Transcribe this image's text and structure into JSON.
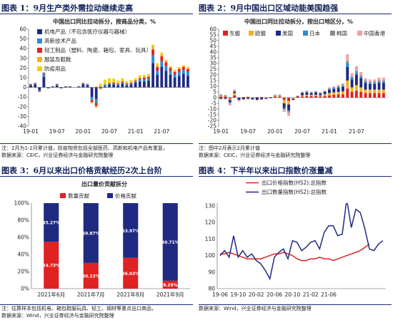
{
  "panels": [
    {
      "title": "图表 1：9月生产类外需拉动继续走高",
      "notes": [
        "注：2月为1-2月累计值，防疫物资包括全部医药、高新和机电产品有重复，",
        "数据来源：CEIC，兴业证券经济与金融研究院整理"
      ]
    },
    {
      "title": "图表 2：9月中国出口区域动能美国趋强",
      "notes": [
        "注：图中2月表示2月累计值",
        "数据来源：CEIC，兴业证券经济与金融研究院整理"
      ]
    },
    {
      "title": "图表 3：6月以来出口价格贡献经历2次上台阶",
      "notes": [
        "注：估算样本包括机电、箱包鞋服玩具、轻工、钢材等重点出口商品，",
        "数据来源：Wind，兴业证券经济与金融研究院整理"
      ]
    },
    {
      "title": "图表 4：下半年以来出口指数价涨量减",
      "notes": [
        "数据来源：Wind，兴业证券经济与金融研究院整理"
      ]
    }
  ],
  "chart_data": [
    {
      "type": "bar",
      "stacked": true,
      "title": "中国出口同比拉动拆分，按商品分类，%",
      "x_tick_labels": [
        "19-01",
        "19-07",
        "20-01",
        "20-07",
        "21-01",
        "21-07"
      ],
      "ylim": [
        -40,
        60
      ],
      "yticks": [
        -40,
        -30,
        -20,
        -10,
        0,
        10,
        20,
        30,
        40,
        50,
        60
      ],
      "legend_position": "top-left",
      "colors": [
        "#1f2a80",
        "#2a8ad8",
        "#e02222",
        "#f0b020",
        "#f5d000"
      ],
      "series": [
        {
          "name": "机电产品（不包含医疗仪器与器械）",
          "values": [
            2,
            3,
            -3,
            11,
            -1,
            1,
            2,
            -1,
            1,
            1,
            0,
            1,
            3,
            2,
            -10,
            -12,
            0,
            1,
            3,
            3,
            2,
            4,
            2,
            3,
            5,
            6,
            6,
            7,
            25,
            13,
            21,
            17,
            13,
            10,
            12,
            14,
            12
          ]
        },
        {
          "name": "高新技术产品",
          "values": [
            1,
            1,
            -1,
            3,
            0,
            0,
            1,
            0,
            0,
            0,
            0,
            0,
            1,
            1,
            -3,
            -4,
            1,
            2,
            1,
            1,
            1,
            1,
            1,
            1,
            1,
            2,
            2,
            2,
            8,
            4,
            6,
            5,
            4,
            3,
            4,
            4,
            4
          ]
        },
        {
          "name": "轻工制品（塑料、陶瓷、箱包、家具、玩具）",
          "values": [
            0.5,
            0.5,
            -0.5,
            1,
            0,
            0,
            0.5,
            0,
            0,
            0,
            0,
            0,
            0.5,
            0.5,
            -2,
            -3,
            -1,
            0,
            0.5,
            1,
            1,
            1,
            1,
            1,
            1,
            1.5,
            2,
            2,
            6,
            4,
            5,
            4,
            3,
            3,
            3,
            3,
            3
          ]
        },
        {
          "name": "服装及鞋靴",
          "values": [
            0.3,
            0.3,
            -0.3,
            0.5,
            0,
            0,
            0.3,
            0,
            0,
            0,
            0,
            0,
            0.3,
            0.3,
            -1.5,
            -2,
            -1,
            -0.5,
            0,
            0,
            0,
            0.5,
            0.5,
            0.5,
            0.5,
            1,
            1,
            1,
            3,
            2,
            2,
            1.5,
            1,
            1,
            1,
            1,
            1
          ]
        },
        {
          "name": "防疫用品",
          "values": [
            0,
            0,
            0,
            0,
            0,
            0,
            0,
            0,
            0,
            0,
            0,
            0,
            0,
            0,
            0,
            1,
            3,
            5,
            5,
            4,
            3,
            3,
            2,
            2,
            2,
            2,
            2,
            2,
            2,
            2,
            2,
            1,
            1,
            1,
            1,
            1,
            1
          ]
        }
      ]
    },
    {
      "type": "bar",
      "stacked": true,
      "title": "中国出口同比拉动拆分，按出口地区分，%",
      "x_tick_labels": [
        "19-01",
        "19-07",
        "20-01",
        "20-07",
        "21-01",
        "21-07"
      ],
      "ylim": [
        -25,
        60
      ],
      "yticks": [
        -25,
        -20,
        -15,
        -10,
        -5,
        0,
        5,
        10,
        15,
        20,
        25,
        30,
        35,
        40,
        45,
        50,
        55,
        60
      ],
      "legend_position": "top",
      "colors": [
        "#e02222",
        "#f5b020",
        "#1f2a80",
        "#2a8ad8",
        "#8a8a8a",
        "#f0a0a0"
      ],
      "series": [
        {
          "name": "东盟",
          "values": [
            1,
            1,
            -1,
            2,
            0,
            0.5,
            0.5,
            0,
            0.5,
            0.5,
            0,
            0.5,
            1,
            1,
            -2,
            -3,
            0,
            1,
            1,
            1.5,
            1.5,
            1.5,
            1,
            1.5,
            2,
            2.5,
            3,
            3,
            8,
            5,
            6,
            5,
            4,
            4,
            4,
            4,
            4
          ]
        },
        {
          "name": "欧盟",
          "values": [
            1,
            0.5,
            -1,
            2,
            0,
            0,
            0.5,
            0,
            0,
            0,
            0,
            0,
            0.5,
            0.5,
            -3,
            -3,
            -1,
            0,
            1,
            1,
            1,
            1,
            1,
            1.5,
            2,
            2,
            2,
            2.5,
            7,
            4,
            5,
            4,
            3,
            3,
            3,
            3,
            3
          ]
        },
        {
          "name": "美国",
          "values": [
            -1,
            -1,
            -2,
            1,
            -2,
            -1.5,
            -1,
            -1.5,
            -2,
            -1.5,
            -1,
            -0.5,
            0,
            0,
            -4,
            -5,
            -1,
            0.5,
            2,
            2,
            1.5,
            2,
            1.5,
            2,
            3,
            3,
            3.5,
            4,
            12,
            7,
            9,
            8,
            6,
            5,
            5,
            6,
            6
          ]
        },
        {
          "name": "日本",
          "values": [
            0.5,
            0.5,
            -0.5,
            0.5,
            0,
            0,
            0,
            0,
            0,
            0,
            0,
            0,
            0.5,
            0.5,
            -1,
            -1,
            0,
            0,
            0.5,
            0.5,
            0.5,
            0.5,
            0.5,
            0.5,
            0.5,
            1,
            1,
            1,
            3,
            1.5,
            2,
            1.5,
            1,
            1,
            1,
            1,
            1
          ]
        },
        {
          "name": "韩国",
          "values": [
            0.3,
            0.3,
            -0.3,
            0.5,
            0,
            0,
            0,
            0,
            0,
            0,
            0,
            0,
            0.3,
            0.3,
            -0.5,
            -1,
            0,
            0,
            0.3,
            0.3,
            0.3,
            0.3,
            0.3,
            0.3,
            0.5,
            0.5,
            0.5,
            0.5,
            2,
            1,
            1.5,
            1,
            1,
            1,
            1,
            1,
            1
          ]
        },
        {
          "name": "中国香港",
          "values": [
            -0.5,
            -0.5,
            -2,
            1,
            -1,
            -0.5,
            -0.5,
            -0.5,
            -0.5,
            -0.5,
            -0.5,
            0,
            0.5,
            0.5,
            -2,
            -3,
            -0.5,
            0,
            0.5,
            1,
            0.5,
            0.5,
            0.5,
            0.5,
            1,
            1,
            1,
            1.5,
            6,
            3,
            4,
            3,
            2,
            2,
            2,
            2.5,
            2.5
          ]
        }
      ]
    },
    {
      "type": "bar",
      "stacked": true,
      "title": "出口量价贡献拆分",
      "categories": [
        "2021年6月",
        "2021年7月",
        "2021年8月",
        "2021年9月"
      ],
      "ylim": [
        0,
        100
      ],
      "yticks": [
        "0%",
        "20%",
        "40%",
        "60%",
        "80%",
        "100%"
      ],
      "legend_position": "top",
      "colors": [
        "#e02222",
        "#1f2a80"
      ],
      "series": [
        {
          "name": "数量贡献",
          "values": [
            54.73,
            30.13,
            36.03,
            9.29
          ],
          "labels": [
            "54.73%",
            "30.13%",
            "36.03%",
            "9.29%"
          ]
        },
        {
          "name": "价格贡献",
          "values": [
            45.27,
            69.87,
            63.97,
            90.71
          ],
          "labels": [
            "45.27%",
            "69.87%",
            "63.97%",
            "90.71%"
          ]
        }
      ]
    },
    {
      "type": "line",
      "x_tick_labels": [
        "19-06",
        "19-10",
        "20-02",
        "20-06",
        "20-10",
        "21-02",
        "21-06"
      ],
      "ylim": [
        80,
        130
      ],
      "yticks": [
        80,
        90,
        100,
        110,
        120,
        130
      ],
      "legend_position": "top",
      "grid": false,
      "colors": [
        "#e02222",
        "#1f2a80"
      ],
      "series": [
        {
          "name": "出口价格指数(HS2):总指数",
          "values": [
            101,
            101,
            102,
            101,
            100,
            99,
            98,
            98,
            98,
            98,
            99,
            100,
            101,
            101,
            102,
            101,
            100,
            98,
            97,
            97,
            98,
            98,
            99,
            98,
            98,
            97,
            98,
            99,
            100,
            101,
            102,
            103,
            105,
            107
          ]
        },
        {
          "name": "出口数量指数(HS2):总指数",
          "values": [
            100,
            103,
            99,
            112,
            99,
            103,
            99,
            101,
            97,
            95,
            91,
            86,
            99,
            102,
            104,
            98,
            109,
            108,
            103,
            105,
            108,
            109,
            104,
            114,
            118,
            118,
            112,
            113,
            160,
            117,
            128,
            126,
            116,
            104,
            103,
            107,
            109
          ]
        }
      ]
    }
  ]
}
